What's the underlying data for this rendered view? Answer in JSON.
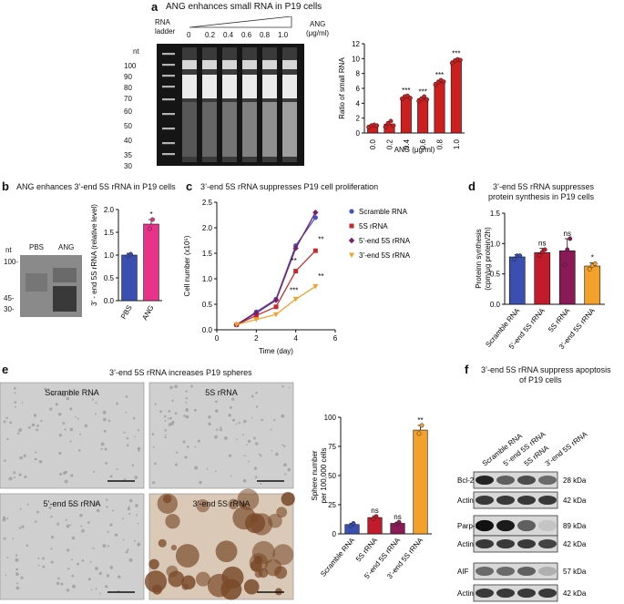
{
  "panels": {
    "a": {
      "label": "a",
      "title": "ANG enhances small RNA in P19 cells",
      "ladder_label": "RNA ladder",
      "ang_label": "ANG",
      "ang_unit": "(μg/ml)",
      "lane_concentrations": [
        "0",
        "0.2",
        "0.4",
        "0.6",
        "0.8",
        "1.0"
      ],
      "nt_label": "nt",
      "nt_markers": [
        "100",
        "90",
        "80",
        "70",
        "60",
        "50",
        "40",
        "35",
        "30"
      ]
    },
    "b": {
      "label": "b",
      "title": "ANG enhances 3’-end 5S rRNA  in P19 cells",
      "nt_label": "nt",
      "lanes": [
        "PBS",
        "ANG"
      ],
      "nt_markers": [
        "100-",
        "45-",
        "30-"
      ]
    },
    "c": {
      "label": "c",
      "title": "3’-end 5S rRNA suppresses  P19 cell proliferation"
    },
    "d": {
      "label": "d",
      "title_line1": "3’-end 5S rRNA suppresses",
      "title_line2": "protein synthesis in P19 cells"
    },
    "e": {
      "label": "e",
      "title": "3’-end 5S rRNA increases P19 spheres",
      "images": [
        "Scramble RNA",
        "5S rRNA",
        "5’-end 5S rRNA",
        "3’-end 5S rRNA"
      ]
    },
    "f": {
      "label": "f",
      "title_line1": "3’-end 5S rRNA suppress apoptosis",
      "title_line2": "of P19 cells",
      "lanes": [
        "Scramble RNA",
        "5’-end 5S rRNA",
        "5S rRNA",
        "3’-end 5S rRNA"
      ],
      "blots": [
        {
          "name": "Bcl-2",
          "kda": "28 kDa",
          "levels": [
            0.9,
            0.6,
            0.7,
            0.55
          ]
        },
        {
          "name": "Actin",
          "kda": "42 kDa",
          "levels": [
            0.8,
            0.8,
            0.8,
            0.8
          ]
        },
        {
          "name": "Parp-1",
          "kda": "89 kDa",
          "levels": [
            1.0,
            0.95,
            0.6,
            0.1
          ]
        },
        {
          "name": "Actin",
          "kda": "42 kDa",
          "levels": [
            0.8,
            0.8,
            0.8,
            0.75
          ]
        },
        {
          "name": "AIF",
          "kda": "57 kDa",
          "levels": [
            0.55,
            0.55,
            0.6,
            0.2
          ]
        },
        {
          "name": "Actin",
          "kda": "42 kDa",
          "levels": [
            0.8,
            0.8,
            0.8,
            0.8
          ]
        }
      ]
    }
  },
  "chart_data": [
    {
      "id": "a",
      "type": "bar",
      "categories": [
        "0.0",
        "0.2",
        "0.4",
        "0.6",
        "0.8",
        "1.0"
      ],
      "values": [
        1.0,
        1.2,
        4.8,
        4.6,
        6.8,
        9.7
      ],
      "errors": [
        0.15,
        0.35,
        0.2,
        0.25,
        0.3,
        0.25
      ],
      "points": [
        [
          0.8,
          1.0,
          1.1,
          1.0
        ],
        [
          0.8,
          1.3,
          1.6,
          1.0
        ],
        [
          4.6,
          4.9,
          5.0,
          4.7
        ],
        [
          4.3,
          4.6,
          4.9,
          4.5
        ],
        [
          6.5,
          6.8,
          7.1,
          6.9
        ],
        [
          9.4,
          9.7,
          9.9,
          9.8
        ]
      ],
      "significance": [
        "",
        "",
        "***",
        "***",
        "***",
        "***"
      ],
      "xlabel": "ANG (μg/ml)",
      "ylabel": "Ratio of small RNA",
      "ylim": [
        0,
        12
      ],
      "yticks": [
        "0",
        "2",
        "4",
        "6",
        "8",
        "10",
        "12"
      ],
      "color": "#cc1f1f"
    },
    {
      "id": "b",
      "type": "bar",
      "categories": [
        "PBS",
        "ANG"
      ],
      "values": [
        1.0,
        1.68
      ],
      "errors": [
        0.04,
        0.1
      ],
      "points": [
        [
          0.98,
          1.02
        ],
        [
          1.58,
          1.78
        ]
      ],
      "significance": [
        "",
        "*"
      ],
      "ylabel": "3’ - end 5S rRNA (relative level)",
      "ylim": [
        0,
        2.0
      ],
      "yticks": [
        "0.0",
        "0.5",
        "1.0",
        "1.5",
        "2.0"
      ],
      "colors": [
        "#3a4fb0",
        "#e8338a"
      ]
    },
    {
      "id": "c",
      "type": "line",
      "x": [
        1,
        2,
        3,
        4,
        5
      ],
      "series": [
        {
          "name": "Scramble RNA",
          "values": [
            0.1,
            0.35,
            0.6,
            1.65,
            2.2
          ],
          "color": "#4455c0",
          "marker": "circle"
        },
        {
          "name": "5S rRNA",
          "values": [
            0.1,
            0.28,
            0.45,
            1.15,
            1.55
          ],
          "color": "#c22b2b",
          "marker": "square"
        },
        {
          "name": "5’-end 5S rRNA",
          "values": [
            0.1,
            0.33,
            0.58,
            1.6,
            2.3
          ],
          "color": "#7a1f6b",
          "marker": "diamond"
        },
        {
          "name": "3’-end 5S rRNA",
          "values": [
            0.1,
            0.2,
            0.3,
            0.6,
            0.85
          ],
          "color": "#f2a12a",
          "marker": "triangle"
        }
      ],
      "annotations": [
        {
          "x": 4,
          "y": 1.3,
          "text": "**"
        },
        {
          "x": 4,
          "y": 0.72,
          "text": "***"
        },
        {
          "x": 5,
          "y": 1.72,
          "text": "**"
        },
        {
          "x": 5,
          "y": 1.0,
          "text": "**"
        }
      ],
      "xlabel": "Time (day)",
      "ylabel": "Cell number (x10⁵)",
      "xlim": [
        0,
        6
      ],
      "ylim": [
        0,
        2.5
      ],
      "xticks": [
        "0",
        "2",
        "4",
        "6"
      ],
      "yticks": [
        "0.0",
        "0.5",
        "1.0",
        "1.5",
        "2.0",
        "2.5"
      ],
      "legend": "right"
    },
    {
      "id": "d",
      "type": "bar",
      "categories": [
        "Scramble RNA",
        "5’-end 5S rRNA",
        "5S rRNA",
        "3’-end 5S rRNA"
      ],
      "values": [
        0.78,
        0.85,
        0.88,
        0.63
      ],
      "errors": [
        0.04,
        0.07,
        0.2,
        0.05
      ],
      "points": [
        [
          0.74,
          0.8,
          0.8
        ],
        [
          0.8,
          0.86,
          0.9
        ],
        [
          0.65,
          0.9,
          1.08
        ],
        [
          0.58,
          0.64,
          0.67
        ]
      ],
      "significance": [
        "",
        "ns",
        "ns",
        "*"
      ],
      "ylabel": "Proteinn synthesis (cpm/μg protein/2h)",
      "ylim": [
        0,
        1.5
      ],
      "yticks": [
        "0.0",
        "0.5",
        "1.0",
        "1.5"
      ],
      "colors": [
        "#3a4fb0",
        "#c21b2b",
        "#8a1a55",
        "#f2a12a"
      ]
    },
    {
      "id": "e",
      "type": "bar",
      "categories": [
        "Scramble RNA",
        "5S rRNA",
        "5’-end 5S rRNA",
        "3’-end 5S rRNA"
      ],
      "values": [
        8,
        14,
        9,
        89
      ],
      "errors": [
        1,
        1.5,
        1,
        4
      ],
      "points": [
        [
          7,
          9
        ],
        [
          13,
          15
        ],
        [
          8,
          10
        ],
        [
          86,
          93
        ]
      ],
      "significance": [
        "",
        "ns",
        "ns",
        "**"
      ],
      "ylabel": "Sphere number per 100,000 cells",
      "ylim": [
        0,
        100
      ],
      "yticks": [
        "0",
        "25",
        "50",
        "75",
        "100"
      ],
      "colors": [
        "#3a4fb0",
        "#c21b2b",
        "#8a1a55",
        "#f2a12a"
      ]
    }
  ]
}
